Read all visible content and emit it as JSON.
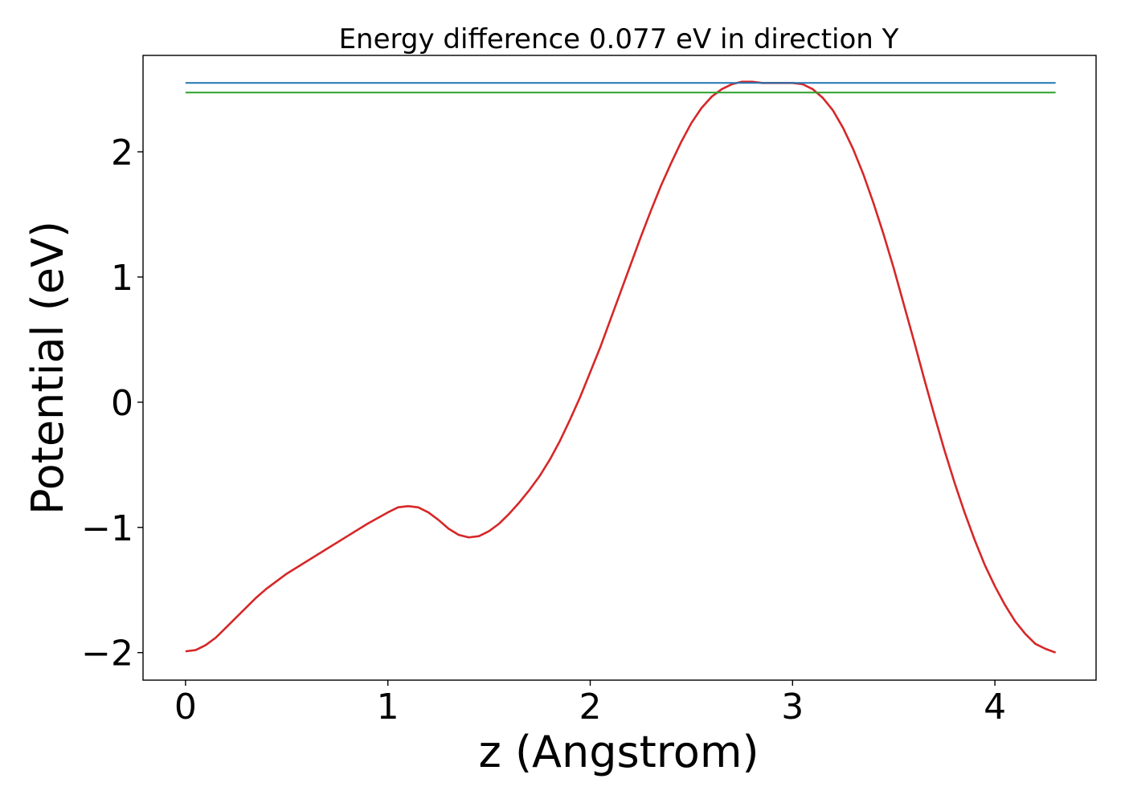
{
  "chart_data": {
    "type": "line",
    "title": "Energy difference 0.077 eV in direction Y",
    "xlabel": "z (Angstrom)",
    "ylabel": "Potential (eV)",
    "xlim": [
      -0.21,
      4.5
    ],
    "ylim": [
      -2.22,
      2.77
    ],
    "xticks": [
      0,
      1,
      2,
      3,
      4
    ],
    "xtick_labels": [
      "0",
      "1",
      "2",
      "3",
      "4"
    ],
    "yticks": [
      -2,
      -1,
      0,
      1,
      2
    ],
    "ytick_labels": [
      "−2",
      "−1",
      "0",
      "1",
      "2"
    ],
    "grid": false,
    "legend": "none",
    "series": [
      {
        "color": "#d62728",
        "x": [
          0.0,
          0.05,
          0.1,
          0.15,
          0.2,
          0.25,
          0.3,
          0.35,
          0.4,
          0.45,
          0.5,
          0.6,
          0.7,
          0.8,
          0.9,
          1.0,
          1.05,
          1.1,
          1.15,
          1.2,
          1.25,
          1.3,
          1.35,
          1.4,
          1.45,
          1.5,
          1.55,
          1.6,
          1.65,
          1.7,
          1.75,
          1.8,
          1.85,
          1.9,
          1.95,
          2.0,
          2.05,
          2.1,
          2.15,
          2.2,
          2.25,
          2.3,
          2.35,
          2.4,
          2.45,
          2.5,
          2.55,
          2.6,
          2.65,
          2.7,
          2.75,
          2.8,
          2.85,
          2.9,
          2.95,
          3.0,
          3.05,
          3.1,
          3.15,
          3.2,
          3.25,
          3.3,
          3.35,
          3.4,
          3.45,
          3.5,
          3.55,
          3.6,
          3.65,
          3.7,
          3.75,
          3.8,
          3.85,
          3.9,
          3.95,
          4.0,
          4.05,
          4.1,
          4.15,
          4.2,
          4.25,
          4.3
        ],
        "y": [
          -1.99,
          -1.98,
          -1.94,
          -1.88,
          -1.8,
          -1.72,
          -1.64,
          -1.56,
          -1.49,
          -1.43,
          -1.37,
          -1.27,
          -1.17,
          -1.07,
          -0.97,
          -0.88,
          -0.84,
          -0.83,
          -0.84,
          -0.88,
          -0.94,
          -1.01,
          -1.06,
          -1.08,
          -1.07,
          -1.03,
          -0.97,
          -0.89,
          -0.8,
          -0.7,
          -0.59,
          -0.46,
          -0.31,
          -0.14,
          0.04,
          0.24,
          0.44,
          0.66,
          0.88,
          1.1,
          1.32,
          1.53,
          1.73,
          1.91,
          2.08,
          2.23,
          2.35,
          2.44,
          2.5,
          2.54,
          2.56,
          2.56,
          2.55,
          2.55,
          2.55,
          2.55,
          2.54,
          2.5,
          2.43,
          2.33,
          2.19,
          2.02,
          1.82,
          1.59,
          1.34,
          1.07,
          0.78,
          0.49,
          0.19,
          -0.1,
          -0.38,
          -0.64,
          -0.88,
          -1.1,
          -1.3,
          -1.47,
          -1.62,
          -1.75,
          -1.85,
          -1.93,
          -1.97,
          -2.0
        ]
      },
      {
        "color": "#1f77b4",
        "x": [
          0.0,
          4.3
        ],
        "y": [
          2.55,
          2.55
        ]
      },
      {
        "color": "#2ca02c",
        "x": [
          0.0,
          4.3
        ],
        "y": [
          2.473,
          2.473
        ]
      }
    ]
  }
}
